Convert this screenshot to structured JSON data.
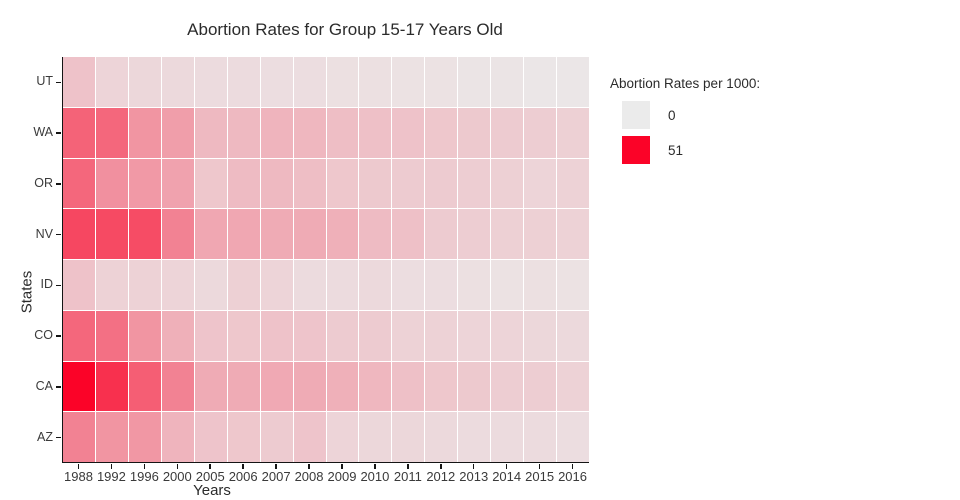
{
  "chart": {
    "title": "Abortion Rates for Group 15-17 Years Old",
    "xlabel": "Years",
    "ylabel": "States"
  },
  "legend": {
    "title": "Abortion Rates per 1000:",
    "items": [
      {
        "label": "0",
        "color": "#ebebeb"
      },
      {
        "label": "51",
        "color": "#fb0328"
      }
    ]
  },
  "chart_data": {
    "type": "heatmap",
    "title": "Abortion Rates for Group 15-17 Years Old",
    "xlabel": "Years",
    "ylabel": "States",
    "x": [
      "1988",
      "1992",
      "1996",
      "2000",
      "2005",
      "2006",
      "2007",
      "2008",
      "2009",
      "2010",
      "2011",
      "2012",
      "2013",
      "2014",
      "2015",
      "2016"
    ],
    "y_top_to_bottom": [
      "UT",
      "WA",
      "OR",
      "NV",
      "ID",
      "CO",
      "CA",
      "AZ"
    ],
    "zmin": 0,
    "zmax": 51,
    "colorscale": {
      "start_color": "#ebebeb",
      "end_color": "#fb0328"
    },
    "grid": false,
    "legend_position": "right",
    "rows": [
      {
        "state": "UT",
        "values": [
          9,
          5,
          4.5,
          4,
          3.5,
          3.5,
          3,
          3,
          2.5,
          2.5,
          2,
          2,
          1.5,
          1.5,
          1,
          1
        ]
      },
      {
        "state": "WA",
        "values": [
          30,
          29,
          19,
          17,
          11,
          11,
          12,
          11.5,
          10,
          9.5,
          9,
          8,
          7.5,
          7,
          6.5,
          6
        ]
      },
      {
        "state": "OR",
        "values": [
          29,
          20,
          18,
          16,
          8,
          10.5,
          11,
          10,
          8,
          7.5,
          7,
          7,
          6.5,
          6,
          5,
          5.5
        ]
      },
      {
        "state": "NV",
        "values": [
          36,
          35.5,
          35,
          23,
          15,
          15,
          14,
          14,
          13,
          10.5,
          9.5,
          7,
          6.5,
          6,
          6,
          5.5
        ]
      },
      {
        "state": "ID",
        "values": [
          9,
          5.5,
          5.5,
          5,
          4,
          6,
          5,
          3.5,
          3.5,
          4,
          3,
          3,
          2.5,
          2,
          2.5,
          2
        ]
      },
      {
        "state": "CO",
        "values": [
          29,
          27,
          19,
          13,
          8.5,
          8,
          9,
          8.5,
          7,
          7,
          5.5,
          5.5,
          5,
          5,
          4.5,
          4
        ]
      },
      {
        "state": "CA",
        "values": [
          51,
          41,
          31,
          23,
          14,
          14,
          14.5,
          14,
          13,
          11.5,
          9.5,
          8,
          7.5,
          6.5,
          6.5,
          5.5
        ]
      },
      {
        "state": "AZ",
        "values": [
          23,
          19,
          18.5,
          12,
          8.5,
          8,
          7,
          8.5,
          5,
          4.5,
          4.5,
          4,
          3.5,
          3.5,
          3.5,
          3
        ]
      }
    ]
  }
}
